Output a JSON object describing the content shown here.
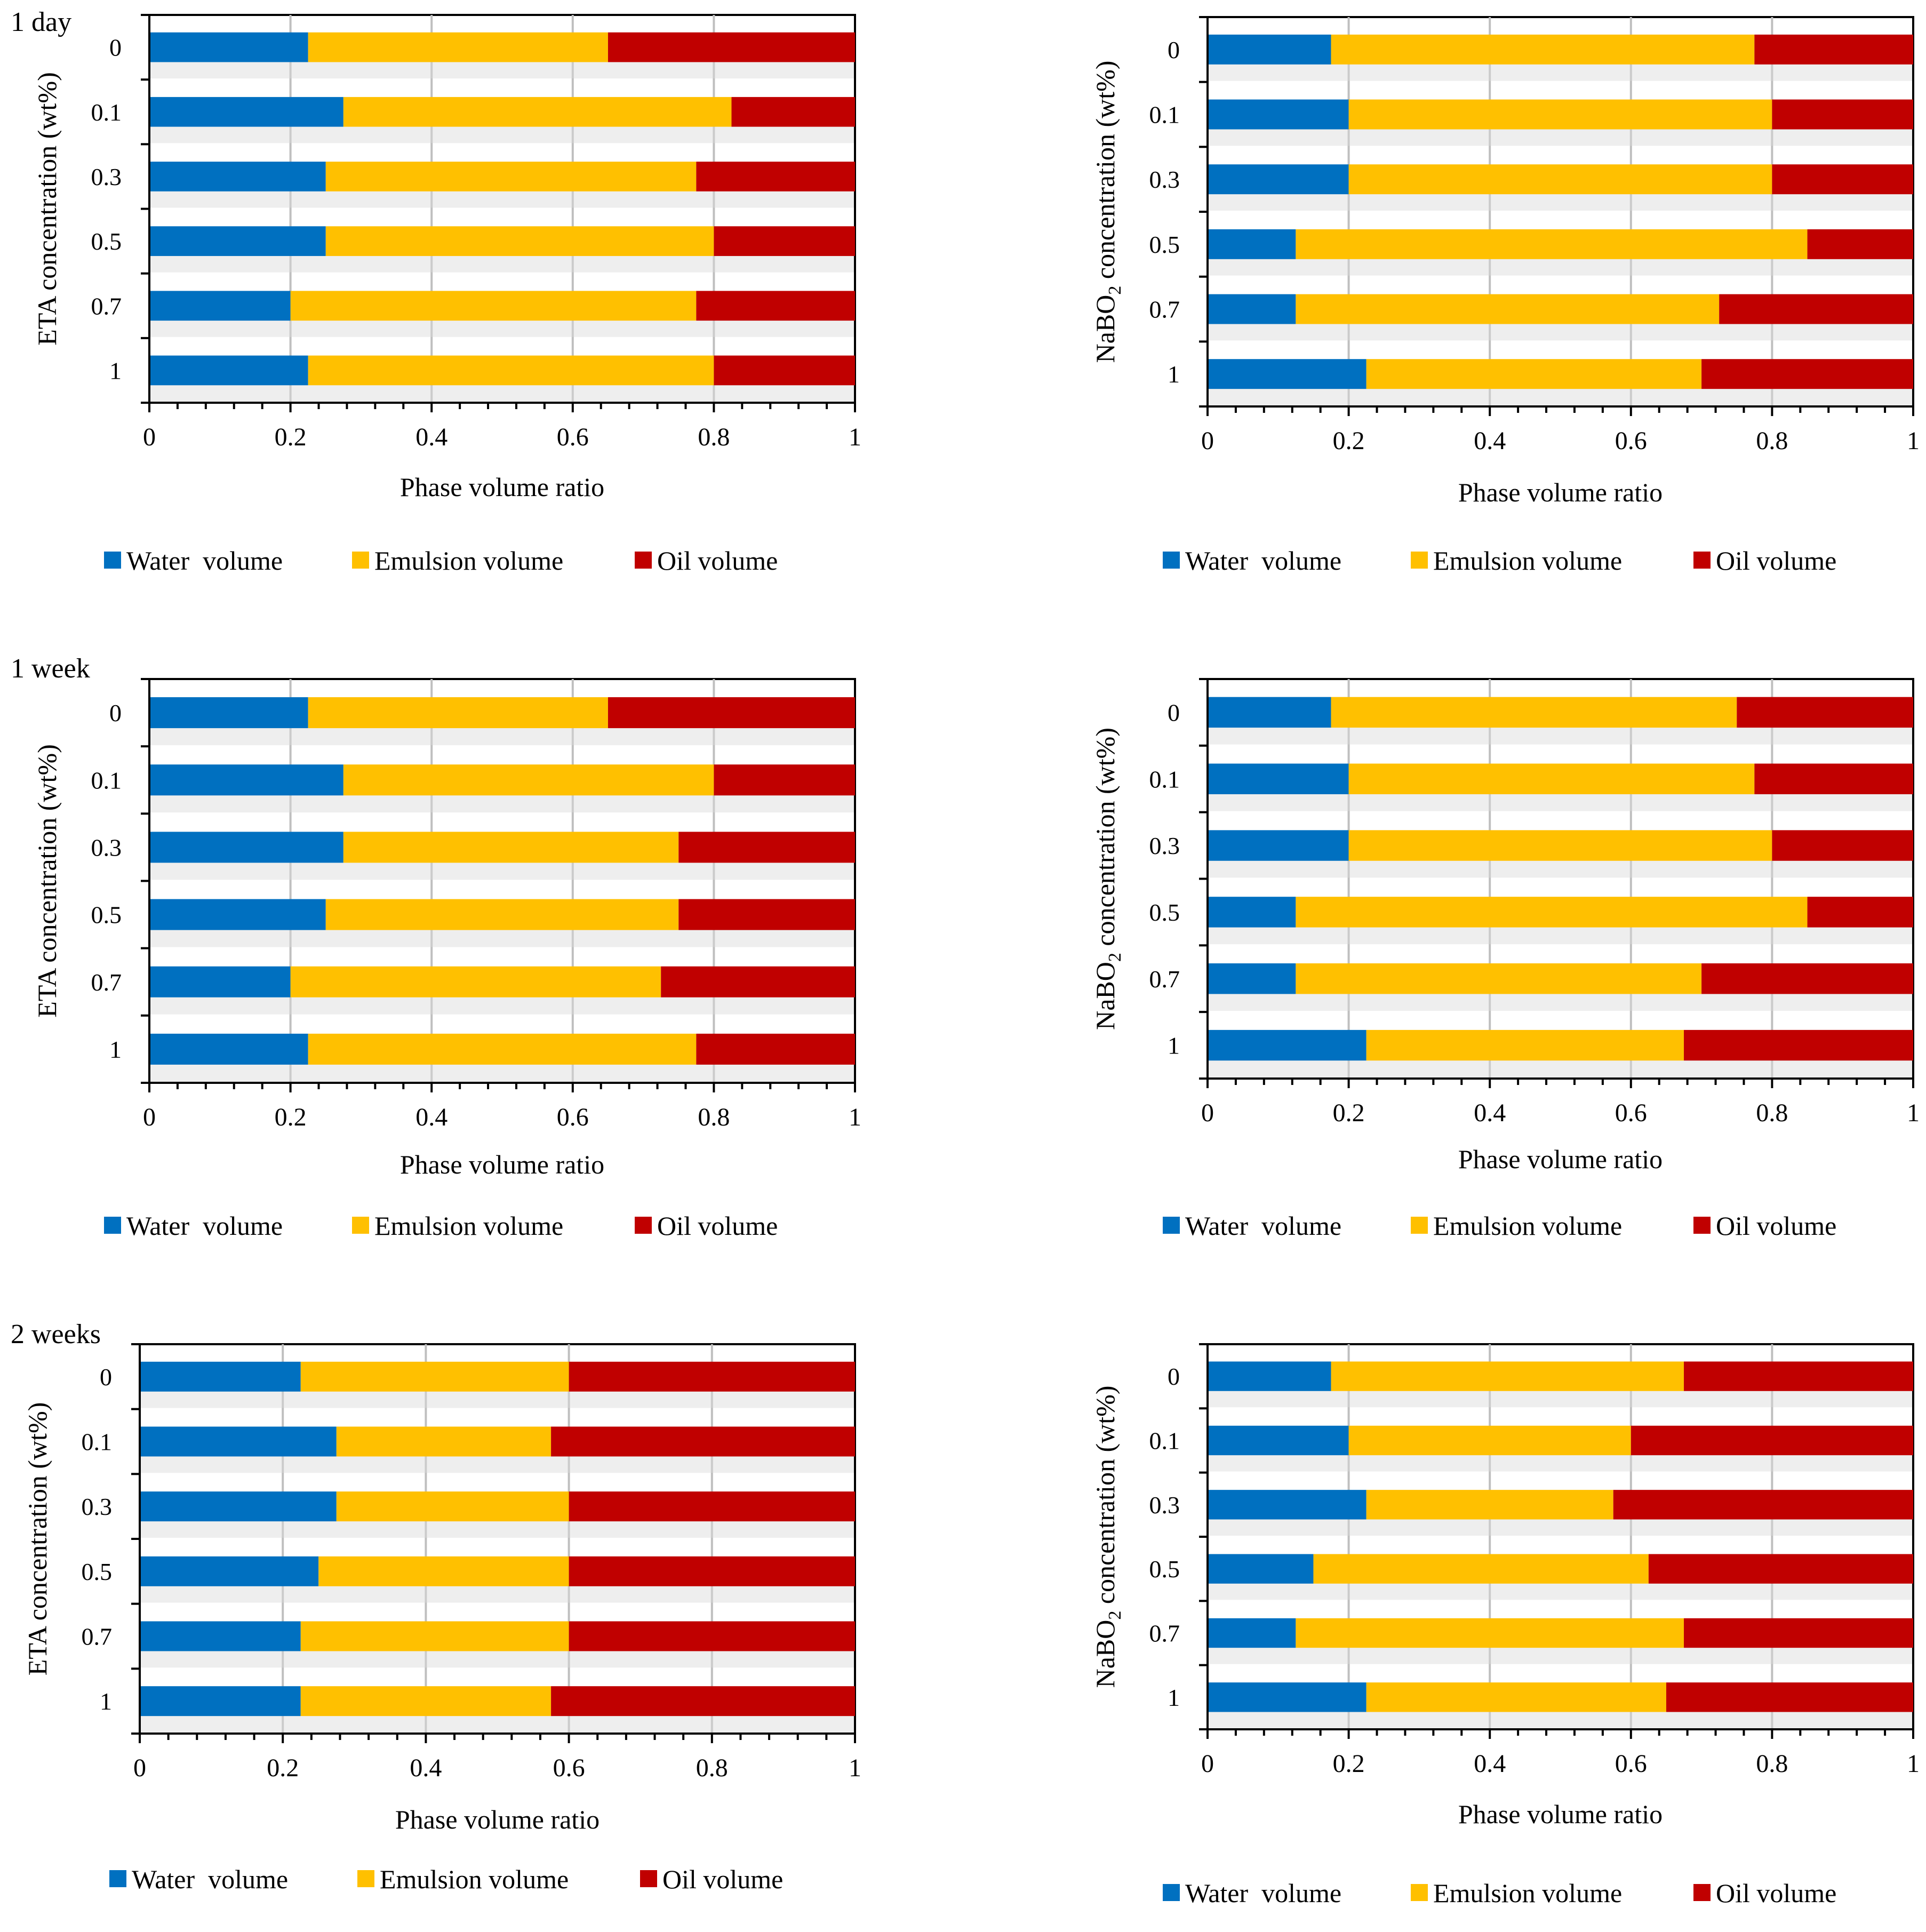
{
  "colors": {
    "water": "#0070c0",
    "emulsion": "#ffc000",
    "oil": "#c00000"
  },
  "time_labels": [
    "1 day",
    "1 week",
    "2 weeks"
  ],
  "chart_data": [
    {
      "type": "bar",
      "orientation": "horizontal",
      "stacked": true,
      "time": "1 day",
      "title": "",
      "ylabel": "ETA concentration (wt%)",
      "ylabel_sub": "",
      "xlabel": "Phase volume ratio",
      "xlim": [
        0,
        1
      ],
      "xticks": [
        "0",
        "0.2",
        "0.4",
        "0.6",
        "0.8",
        "1"
      ],
      "grid": "vertical",
      "legend": "bottom",
      "categories": [
        "0",
        "0.1",
        "0.3",
        "0.5",
        "0.7",
        "1"
      ],
      "series": [
        {
          "name": "Water  volume",
          "values": [
            0.225,
            0.275,
            0.25,
            0.25,
            0.2,
            0.225
          ]
        },
        {
          "name": "Emulsion volume",
          "values": [
            0.425,
            0.55,
            0.525,
            0.55,
            0.575,
            0.575
          ]
        },
        {
          "name": "Oil volume",
          "values": [
            0.35,
            0.175,
            0.225,
            0.2,
            0.225,
            0.2
          ]
        }
      ]
    },
    {
      "type": "bar",
      "orientation": "horizontal",
      "stacked": true,
      "time": "1 day",
      "title": "",
      "ylabel": "NaBO",
      "ylabel_sub": "2",
      "ylabel_rest": " concentration (wt%)",
      "xlabel": "Phase volume ratio",
      "xlim": [
        0,
        1
      ],
      "xticks": [
        "0",
        "0.2",
        "0.4",
        "0.6",
        "0.8",
        "1"
      ],
      "grid": "vertical",
      "legend": "bottom",
      "categories": [
        "0",
        "0.1",
        "0.3",
        "0.5",
        "0.7",
        "1"
      ],
      "series": [
        {
          "name": "Water  volume",
          "values": [
            0.175,
            0.2,
            0.2,
            0.125,
            0.125,
            0.225
          ]
        },
        {
          "name": "Emulsion volume",
          "values": [
            0.6,
            0.6,
            0.6,
            0.725,
            0.6,
            0.475
          ]
        },
        {
          "name": "Oil volume",
          "values": [
            0.225,
            0.2,
            0.2,
            0.15,
            0.275,
            0.3
          ]
        }
      ]
    },
    {
      "type": "bar",
      "orientation": "horizontal",
      "stacked": true,
      "time": "1 week",
      "title": "",
      "ylabel": "ETA concentration (wt%)",
      "ylabel_sub": "",
      "xlabel": "Phase volume ratio",
      "xlim": [
        0,
        1
      ],
      "xticks": [
        "0",
        "0.2",
        "0.4",
        "0.6",
        "0.8",
        "1"
      ],
      "grid": "vertical",
      "legend": "bottom",
      "categories": [
        "0",
        "0.1",
        "0.3",
        "0.5",
        "0.7",
        "1"
      ],
      "series": [
        {
          "name": "Water  volume",
          "values": [
            0.225,
            0.275,
            0.275,
            0.25,
            0.2,
            0.225
          ]
        },
        {
          "name": "Emulsion volume",
          "values": [
            0.425,
            0.525,
            0.475,
            0.5,
            0.525,
            0.55
          ]
        },
        {
          "name": "Oil volume",
          "values": [
            0.35,
            0.2,
            0.25,
            0.25,
            0.275,
            0.225
          ]
        }
      ]
    },
    {
      "type": "bar",
      "orientation": "horizontal",
      "stacked": true,
      "time": "1 week",
      "title": "",
      "ylabel": "NaBO",
      "ylabel_sub": "2",
      "ylabel_rest": " concentration (wt%)",
      "xlabel": "Phase volume ratio",
      "xlim": [
        0,
        1
      ],
      "xticks": [
        "0",
        "0.2",
        "0.4",
        "0.6",
        "0.8",
        "1"
      ],
      "grid": "vertical",
      "legend": "bottom",
      "categories": [
        "0",
        "0.1",
        "0.3",
        "0.5",
        "0.7",
        "1"
      ],
      "series": [
        {
          "name": "Water  volume",
          "values": [
            0.175,
            0.2,
            0.2,
            0.125,
            0.125,
            0.225
          ]
        },
        {
          "name": "Emulsion volume",
          "values": [
            0.575,
            0.575,
            0.6,
            0.725,
            0.575,
            0.45
          ]
        },
        {
          "name": "Oil volume",
          "values": [
            0.25,
            0.225,
            0.2,
            0.15,
            0.3,
            0.325
          ]
        }
      ]
    },
    {
      "type": "bar",
      "orientation": "horizontal",
      "stacked": true,
      "time": "2 weeks",
      "title": "",
      "ylabel": "ETA concentration (wt%)",
      "ylabel_sub": "",
      "xlabel": "Phase volume ratio",
      "xlim": [
        0,
        1
      ],
      "xticks": [
        "0",
        "0.2",
        "0.4",
        "0.6",
        "0.8",
        "1"
      ],
      "grid": "vertical",
      "legend": "bottom",
      "categories": [
        "0",
        "0.1",
        "0.3",
        "0.5",
        "0.7",
        "1"
      ],
      "series": [
        {
          "name": "Water  volume",
          "values": [
            0.225,
            0.275,
            0.275,
            0.25,
            0.225,
            0.225
          ]
        },
        {
          "name": "Emulsion volume",
          "values": [
            0.375,
            0.3,
            0.325,
            0.35,
            0.375,
            0.35
          ]
        },
        {
          "name": "Oil volume",
          "values": [
            0.4,
            0.425,
            0.4,
            0.4,
            0.4,
            0.425
          ]
        }
      ]
    },
    {
      "type": "bar",
      "orientation": "horizontal",
      "stacked": true,
      "time": "2 weeks",
      "title": "",
      "ylabel": "NaBO",
      "ylabel_sub": "2",
      "ylabel_rest": " concentration (wt%)",
      "xlabel": "Phase volume ratio",
      "xlim": [
        0,
        1
      ],
      "xticks": [
        "0",
        "0.2",
        "0.4",
        "0.6",
        "0.8",
        "1"
      ],
      "grid": "vertical",
      "legend": "bottom",
      "categories": [
        "0",
        "0.1",
        "0.3",
        "0.5",
        "0.7",
        "1"
      ],
      "series": [
        {
          "name": "Water  volume",
          "values": [
            0.175,
            0.2,
            0.225,
            0.15,
            0.125,
            0.225
          ]
        },
        {
          "name": "Emulsion volume",
          "values": [
            0.5,
            0.4,
            0.35,
            0.475,
            0.55,
            0.425
          ]
        },
        {
          "name": "Oil volume",
          "values": [
            0.325,
            0.4,
            0.425,
            0.375,
            0.325,
            0.35
          ]
        }
      ]
    }
  ]
}
